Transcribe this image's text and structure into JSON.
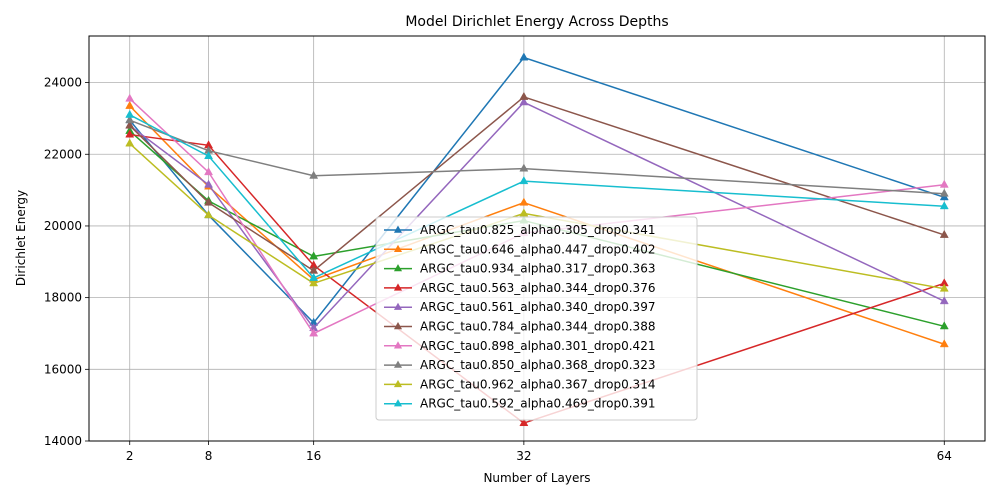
{
  "chart_data": {
    "type": "line",
    "title": "Model Dirichlet Energy Across Depths",
    "xlabel": "Number of Layers",
    "ylabel": "Dirichlet Energy",
    "x": [
      2,
      8,
      16,
      32,
      64
    ],
    "xlim": [
      -1.1,
      67.1
    ],
    "ylim": [
      14000,
      25300
    ],
    "yticks": [
      14000,
      16000,
      18000,
      20000,
      22000,
      24000
    ],
    "grid": true,
    "legend_placement": "lower center",
    "marker": "triangle-up",
    "series": [
      {
        "name": "ARGC_tau0.825_alpha0.305_drop0.341",
        "color": "#1f77b4",
        "values": [
          22950,
          20300,
          17300,
          24700,
          20800
        ]
      },
      {
        "name": "ARGC_tau0.646_alpha0.447_drop0.402",
        "color": "#ff7f0e",
        "values": [
          23350,
          21100,
          18500,
          20650,
          16700
        ]
      },
      {
        "name": "ARGC_tau0.934_alpha0.317_drop0.363",
        "color": "#2ca02c",
        "values": [
          22650,
          20700,
          19150,
          20150,
          17200
        ]
      },
      {
        "name": "ARGC_tau0.563_alpha0.344_drop0.376",
        "color": "#d62728",
        "values": [
          22550,
          22250,
          18900,
          14500,
          18400
        ]
      },
      {
        "name": "ARGC_tau0.561_alpha0.340_drop0.397",
        "color": "#9467bd",
        "values": [
          22800,
          21150,
          17150,
          23450,
          17900
        ]
      },
      {
        "name": "ARGC_tau0.784_alpha0.344_drop0.388",
        "color": "#8c564b",
        "values": [
          22800,
          20650,
          18750,
          23600,
          19750
        ]
      },
      {
        "name": "ARGC_tau0.898_alpha0.301_drop0.421",
        "color": "#e377c2",
        "values": [
          23550,
          21500,
          17000,
          19800,
          21150
        ]
      },
      {
        "name": "ARGC_tau0.850_alpha0.368_drop0.323",
        "color": "#7f7f7f",
        "values": [
          22950,
          22100,
          21400,
          21600,
          20900
        ]
      },
      {
        "name": "ARGC_tau0.962_alpha0.367_drop0.314",
        "color": "#bcbd22",
        "values": [
          22300,
          20300,
          18400,
          20350,
          18250
        ]
      },
      {
        "name": "ARGC_tau0.592_alpha0.469_drop0.391",
        "color": "#17becf",
        "values": [
          23100,
          21950,
          18550,
          21250,
          20550
        ]
      }
    ]
  }
}
